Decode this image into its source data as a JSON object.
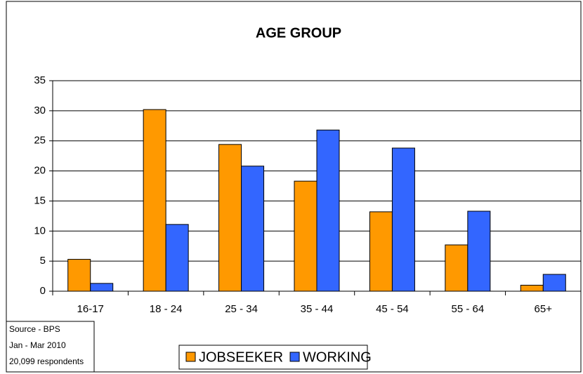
{
  "chart_data": {
    "type": "bar",
    "title": "AGE GROUP",
    "categories": [
      "16-17",
      "18 - 24",
      "25 - 34",
      "35 - 44",
      "45 - 54",
      "55 - 64",
      "65+"
    ],
    "series": [
      {
        "name": "JOBSEEKER",
        "color": "#ff9900",
        "values": [
          5.3,
          30.2,
          24.4,
          18.3,
          13.2,
          7.7,
          1.0
        ]
      },
      {
        "name": "WORKING",
        "color": "#3366ff",
        "values": [
          1.3,
          11.1,
          20.8,
          26.8,
          23.8,
          13.3,
          2.8
        ]
      }
    ],
    "ylim": [
      0,
      35
    ],
    "yticks": [
      0,
      5,
      10,
      15,
      20,
      25,
      30,
      35
    ],
    "grid": true,
    "source": [
      "Source - BPS",
      "Jan - Mar 2010",
      "20,099 respondents"
    ]
  }
}
